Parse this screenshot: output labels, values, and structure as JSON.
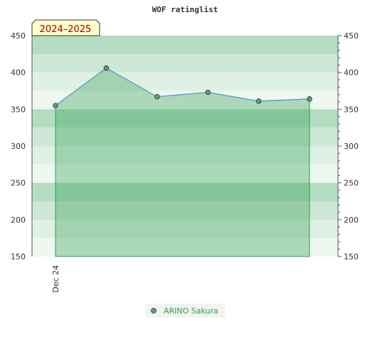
{
  "chart_data": {
    "type": "area",
    "title": "WOF ratinglist",
    "season_badge": "2024–2025",
    "ylim": [
      150,
      450
    ],
    "y_ticks": [
      150,
      200,
      250,
      300,
      350,
      400,
      450
    ],
    "x_tick_labels": [
      "Dec 24"
    ],
    "series": [
      {
        "name": "ARINO Sakura",
        "values": [
          355,
          406,
          367,
          373,
          361,
          364
        ]
      }
    ],
    "legend": "bottom-center",
    "grid": true,
    "colors": {
      "band_dark": "#b3dcc0",
      "band_mid": "#cce7d5",
      "band_light": "#dff0e4",
      "band_pale": "#eef7f0",
      "area_fill": "#2e9e4f",
      "line": "#5b9bd5",
      "marker": "#5aa06a",
      "legend_text": "#2e9e4f",
      "badge_bg": "#ffffcc"
    }
  }
}
